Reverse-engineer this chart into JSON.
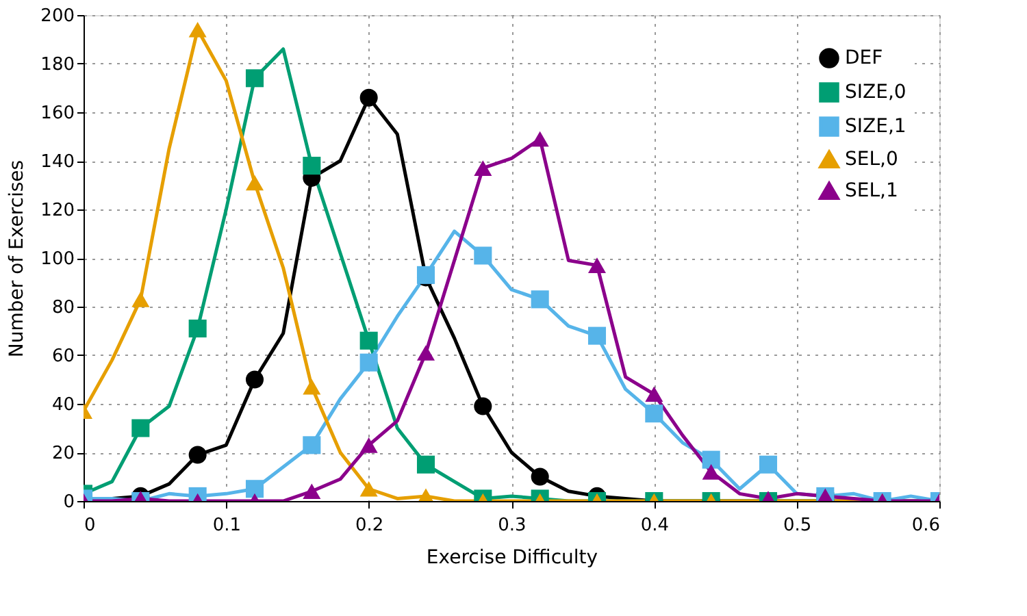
{
  "chart_data": {
    "type": "line",
    "xlabel": "Exercise Difficulty",
    "ylabel": "Number of Exercises",
    "x": [
      0,
      0.02,
      0.04,
      0.06,
      0.08,
      0.1,
      0.12,
      0.14,
      0.16,
      0.18,
      0.2,
      0.22,
      0.24,
      0.26,
      0.28,
      0.3,
      0.32,
      0.34,
      0.36,
      0.38,
      0.4,
      0.42,
      0.44,
      0.46,
      0.48,
      0.5,
      0.52,
      0.54,
      0.56,
      0.58,
      0.6
    ],
    "series": [
      {
        "name": "DEF",
        "color": "#000000",
        "marker": "circle",
        "values": [
          1,
          1,
          2,
          7,
          19,
          23,
          50,
          69,
          133,
          140,
          166,
          151,
          92,
          67,
          39,
          20,
          10,
          4,
          2,
          1,
          0,
          0,
          0,
          0,
          0,
          0,
          0,
          0,
          0,
          0,
          0
        ]
      },
      {
        "name": "SIZE,0",
        "color": "#009e73",
        "marker": "square",
        "values": [
          3,
          8,
          30,
          39,
          71,
          120,
          174,
          186,
          138,
          102,
          66,
          30,
          15,
          8,
          1,
          2,
          1,
          0,
          0,
          0,
          0,
          0,
          0,
          0,
          0,
          0,
          0,
          null,
          null,
          null,
          null
        ]
      },
      {
        "name": "SIZE,1",
        "color": "#56b4e9",
        "marker": "square",
        "values": [
          1,
          1,
          0,
          3,
          2,
          3,
          5,
          14,
          23,
          42,
          57,
          76,
          93,
          111,
          101,
          87,
          83,
          72,
          68,
          46,
          36,
          24,
          17,
          5,
          15,
          3,
          2,
          3,
          0,
          2,
          0
        ]
      },
      {
        "name": "SEL,0",
        "color": "#e69f00",
        "marker": "triangle",
        "values": [
          37,
          58,
          83,
          145,
          194,
          173,
          131,
          96,
          47,
          20,
          5,
          1,
          2,
          0,
          0,
          0,
          0,
          0,
          0,
          0,
          0,
          0,
          0,
          0,
          0,
          0,
          0,
          0,
          0,
          null,
          null
        ]
      },
      {
        "name": "SEL,1",
        "color": "#8b008b",
        "marker": "triangle",
        "values": [
          0,
          0,
          1,
          0,
          0,
          0,
          0,
          0,
          4,
          9,
          23,
          33,
          61,
          99,
          137,
          141,
          149,
          99,
          97,
          51,
          44,
          27,
          12,
          3,
          1,
          3,
          2,
          1,
          0,
          0,
          0
        ]
      }
    ],
    "xlim": [
      0,
      0.6
    ],
    "xticks": [
      0,
      0.1,
      0.2,
      0.3,
      0.4,
      0.5,
      0.6
    ],
    "ylim": [
      0,
      200
    ],
    "yticks": [
      0,
      20,
      40,
      60,
      80,
      100,
      120,
      140,
      160,
      180,
      200
    ],
    "grid": true,
    "legend": "top right",
    "line_style": "solid"
  }
}
